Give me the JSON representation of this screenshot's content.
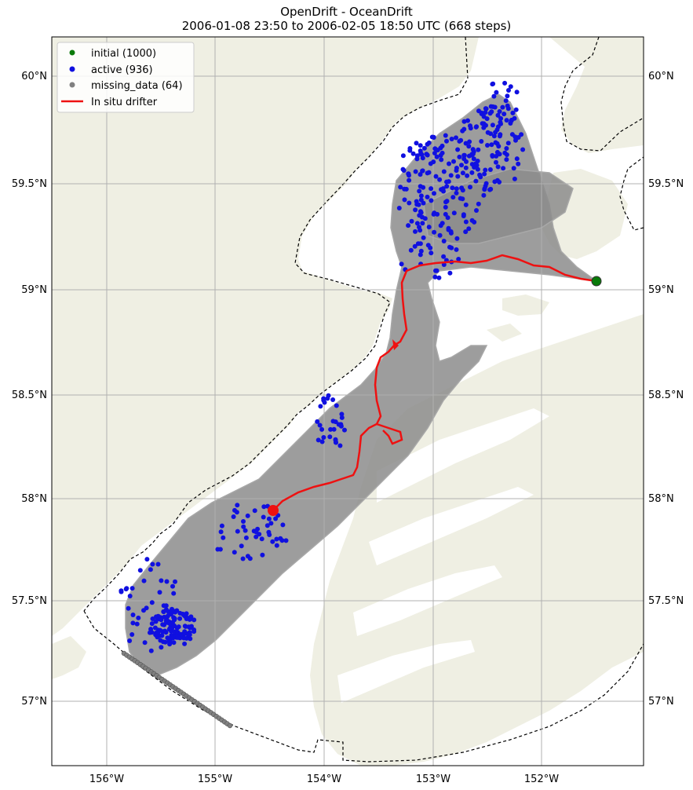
{
  "title": {
    "line1": "OpenDrift - OceanDrift",
    "line2": "2006-01-08 23:50 to 2006-02-05 18:50 UTC (668 steps)"
  },
  "colors": {
    "land": "#efefe3",
    "ocean": "#ffffff",
    "grid": "#b0b0b0",
    "trajectory": "#8c8c8c",
    "active": "#1010e0",
    "initial": "#0a7a0a",
    "missing": "#808080",
    "drifter": "#ee1111"
  },
  "legend": [
    {
      "label": "initial (1000)",
      "marker": "dot",
      "color": "#0a7a0a"
    },
    {
      "label": "active (936)",
      "marker": "dot",
      "color": "#1010e0"
    },
    {
      "label": "missing_data (64)",
      "marker": "dot",
      "color": "#808080"
    },
    {
      "label": "In situ drifter",
      "marker": "line",
      "color": "#ee1111"
    }
  ],
  "axes": {
    "lon_ticks": [
      "156°W",
      "155°W",
      "154°W",
      "153°W",
      "152°W"
    ],
    "lat_ticks": [
      "60°N",
      "59.5°N",
      "59°N",
      "58.5°N",
      "58°N",
      "57.5°N",
      "57°N"
    ]
  }
}
